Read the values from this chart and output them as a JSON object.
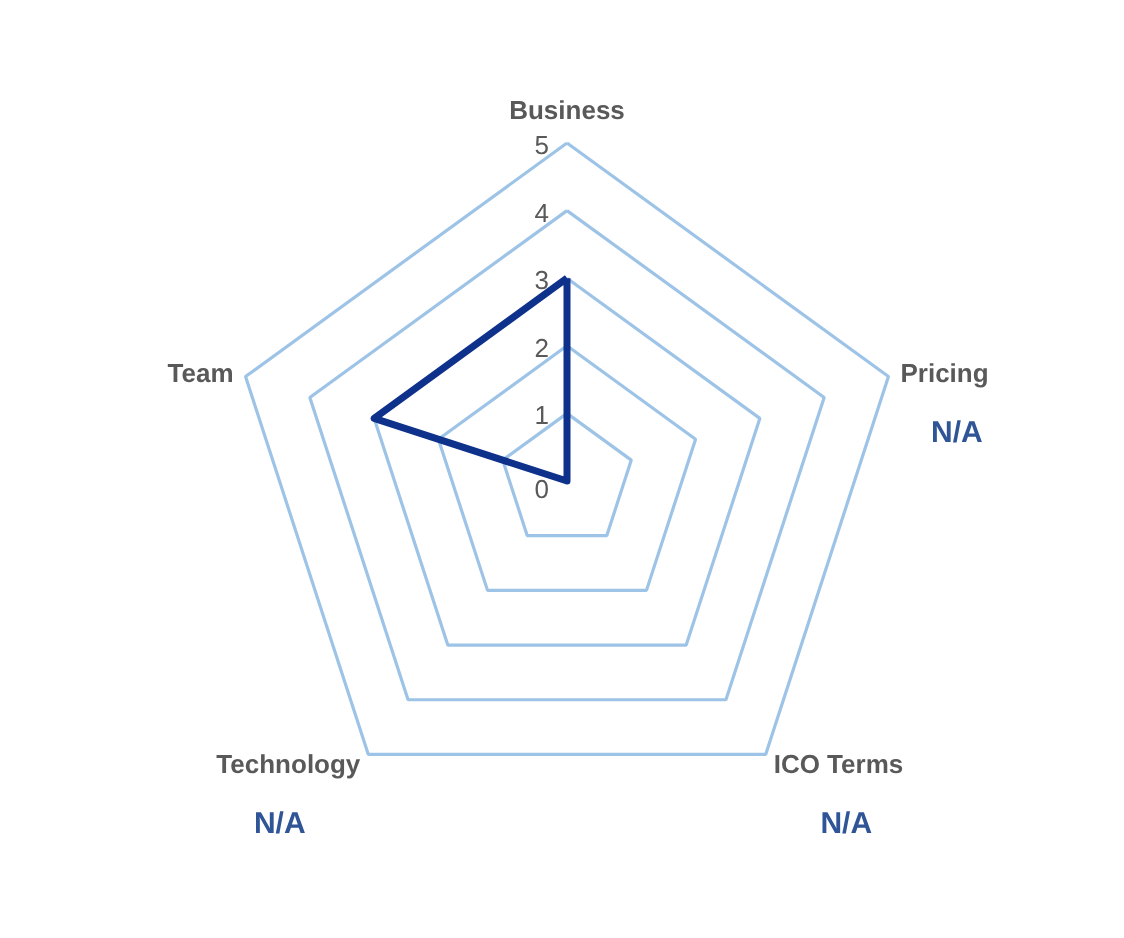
{
  "chart_data": {
    "type": "radar",
    "categories": [
      "Business",
      "Pricing",
      "ICO Terms",
      "Technology",
      "Team"
    ],
    "series": [
      {
        "color": "#0e318c",
        "values": [
          3,
          0,
          0,
          0,
          3
        ]
      }
    ],
    "ylim": [
      0,
      5
    ],
    "yticks": [
      0,
      1,
      2,
      3,
      4,
      5
    ],
    "grid": true,
    "annotations": [
      {
        "text": "N/A",
        "x": "Pricing"
      },
      {
        "text": "N/A",
        "x": "ICO Terms"
      },
      {
        "text": "N/A",
        "x": "Technology"
      }
    ]
  }
}
